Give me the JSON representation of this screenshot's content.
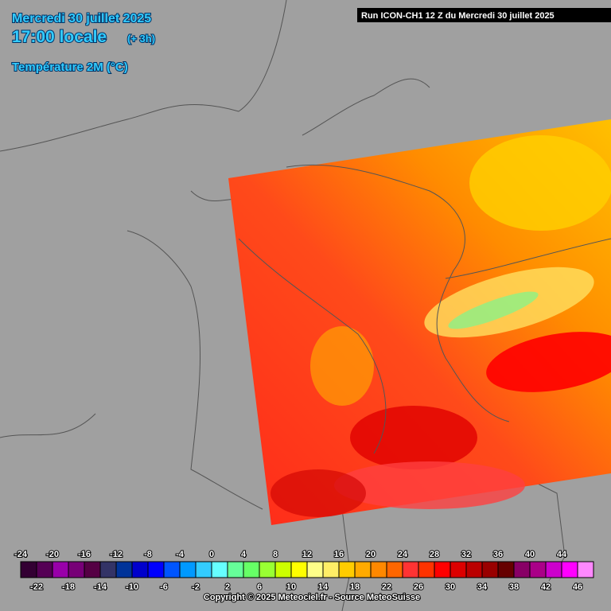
{
  "header": {
    "date": "Mercredi 30 juillet 2025",
    "time": "17:00 locale",
    "offset": "(+ 3h)",
    "parameter": "Température 2M (°C)",
    "run": "Run ICON-CH1 12 Z du Mercredi 30 juillet 2025"
  },
  "legend": {
    "values": [
      -24,
      -22,
      -20,
      -18,
      -16,
      -14,
      -12,
      -10,
      -8,
      -6,
      -4,
      -2,
      0,
      2,
      4,
      6,
      8,
      10,
      12,
      14,
      16,
      18,
      20,
      22,
      24,
      26,
      28,
      30,
      32,
      34,
      36,
      38,
      40,
      42,
      44,
      46
    ],
    "colors": [
      "#330033",
      "#550055",
      "#9900aa",
      "#770077",
      "#550044",
      "#333366",
      "#003399",
      "#0000cc",
      "#0000ff",
      "#0055ff",
      "#0099ff",
      "#33ccff",
      "#66ffff",
      "#66ff99",
      "#66ff66",
      "#99ff33",
      "#ccff00",
      "#ffff00",
      "#ffff88",
      "#ffee66",
      "#ffcc00",
      "#ffaa00",
      "#ff8800",
      "#ff6600",
      "#ff3333",
      "#ff3300",
      "#ff0000",
      "#dd0000",
      "#bb0000",
      "#990000",
      "#660000",
      "#880066",
      "#aa0088",
      "#cc00cc",
      "#ff00ff",
      "#ff88ff"
    ]
  },
  "footer": {
    "copyright": "Copyright © 2025 Meteociel.fr - Source MeteoSuisse"
  }
}
